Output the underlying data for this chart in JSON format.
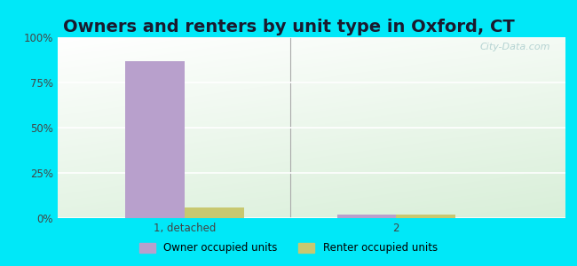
{
  "title": "Owners and renters by unit type in Oxford, CT",
  "categories": [
    "1, detached",
    "2"
  ],
  "owner_values": [
    87,
    2
  ],
  "renter_values": [
    6,
    2
  ],
  "owner_color": "#b8a0cc",
  "renter_color": "#c8c870",
  "background_outer": "#00e8f8",
  "yticks": [
    0,
    25,
    50,
    75,
    100
  ],
  "ytick_labels": [
    "0%",
    "25%",
    "50%",
    "75%",
    "100%"
  ],
  "bar_width": 0.28,
  "title_fontsize": 14,
  "legend_labels": [
    "Owner occupied units",
    "Renter occupied units"
  ],
  "watermark": "City-Data.com",
  "xlim": [
    -0.6,
    1.8
  ],
  "separator_x": 0.5
}
